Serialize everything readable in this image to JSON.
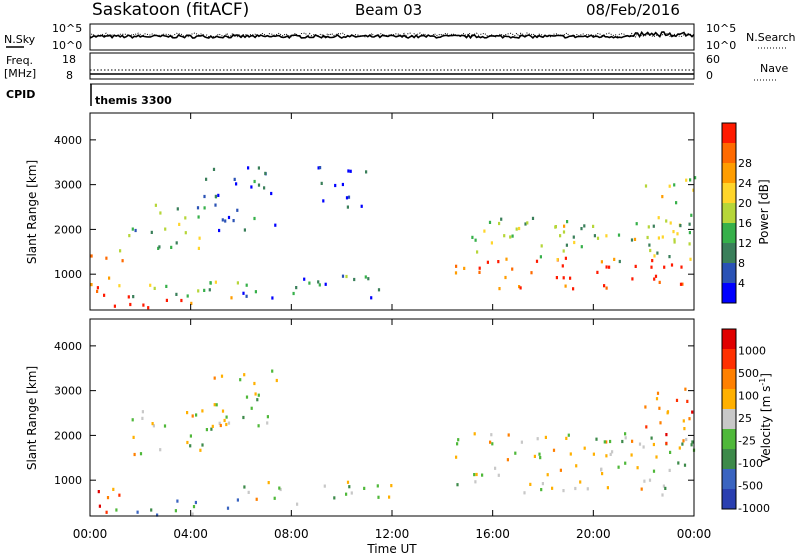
{
  "header": {
    "station": "Saskatoon (fitACF)",
    "beam": "Beam 03",
    "date": "08/Feb/2016"
  },
  "top_panels": {
    "nsky_label": "N.Sky",
    "nsky_ticks": [
      "10^5",
      "10^0"
    ],
    "nsearch_label": "N.Search",
    "nsearch_ticks": [
      "10^5",
      "10^0"
    ],
    "freq_label": "Freq.",
    "freq_unit": "[MHz]",
    "freq_ticks": [
      "18",
      "8"
    ],
    "nave_label": "Nave",
    "nave_ticks": [
      "60",
      "0"
    ],
    "cpid_label": "CPID",
    "cpid_value": "themis 3300"
  },
  "chart_data": [
    {
      "type": "heatmap",
      "name": "power",
      "ylabel": "Slant Range [km]",
      "y_ticks": [
        "1000",
        "2000",
        "3000",
        "4000"
      ],
      "ylim": [
        200,
        4600
      ],
      "colorbar_label": "Power [dB]",
      "colorbar_ticks": [
        "4",
        "8",
        "12",
        "16",
        "20",
        "24",
        "28"
      ],
      "colors": [
        "#0000ff",
        "#2a52b5",
        "#3a7f5a",
        "#36b04a",
        "#b6d639",
        "#ffd52a",
        "#ff9d00",
        "#ff6a00",
        "#ff1a00"
      ],
      "regions": [
        {
          "t": [
            0.0,
            1.5
          ],
          "r": [
            700,
            1600
          ],
          "level": 0.7
        },
        {
          "t": [
            0.0,
            1.5
          ],
          "r": [
            250,
            700
          ],
          "level": 0.95
        },
        {
          "t": [
            1.5,
            6.0
          ],
          "r": [
            250,
            450
          ],
          "level": 0.95
        },
        {
          "t": [
            1.0,
            6.5
          ],
          "r": [
            500,
            900
          ],
          "level": 0.5
        },
        {
          "t": [
            1.5,
            4.5
          ],
          "r": [
            1600,
            2600
          ],
          "level": 0.4
        },
        {
          "t": [
            4.5,
            7.5
          ],
          "r": [
            2000,
            3500
          ],
          "level": 0.2
        },
        {
          "t": [
            6.0,
            12.0
          ],
          "r": [
            500,
            1000
          ],
          "level": 0.3
        },
        {
          "t": [
            9.0,
            11.0
          ],
          "r": [
            2500,
            3500
          ],
          "level": 0.1
        },
        {
          "t": [
            14.5,
            24.0
          ],
          "r": [
            700,
            1400
          ],
          "level": 0.9
        },
        {
          "t": [
            15.0,
            24.0
          ],
          "r": [
            1300,
            2300
          ],
          "level": 0.45
        },
        {
          "t": [
            22.0,
            24.0
          ],
          "r": [
            1800,
            3200
          ],
          "level": 0.5
        }
      ]
    },
    {
      "type": "heatmap",
      "name": "velocity",
      "ylabel": "Slant Range [km]",
      "y_ticks": [
        "1000",
        "2000",
        "3000",
        "4000"
      ],
      "ylim": [
        200,
        4600
      ],
      "x_ticks": [
        "00:00",
        "04:00",
        "08:00",
        "12:00",
        "16:00",
        "20:00",
        "00:00"
      ],
      "xlabel": "Time UT",
      "colorbar_label": "Velocity [m s^-1]",
      "colorbar_ticks": [
        "1000",
        "500",
        "100",
        "25",
        "-25",
        "-100",
        "-500",
        "-1000"
      ],
      "colors": [
        "#2a3fb0",
        "#3a64c0",
        "#3d8a4a",
        "#4fb83a",
        "#c8c8c8",
        "#ffb000",
        "#ff8000",
        "#ff3000",
        "#e00000"
      ],
      "regions": [
        {
          "t": [
            0.0,
            1.5
          ],
          "r": [
            300,
            900
          ],
          "level": 0.78
        },
        {
          "t": [
            1.0,
            6.0
          ],
          "r": [
            250,
            600
          ],
          "level": 0.3
        },
        {
          "t": [
            1.5,
            4.5
          ],
          "r": [
            1600,
            2600
          ],
          "level": 0.5
        },
        {
          "t": [
            4.5,
            7.5
          ],
          "r": [
            2000,
            3500
          ],
          "level": 0.5
        },
        {
          "t": [
            6.0,
            12.0
          ],
          "r": [
            500,
            1000
          ],
          "level": 0.5
        },
        {
          "t": [
            14.5,
            24.0
          ],
          "r": [
            700,
            2100
          ],
          "level": 0.5
        },
        {
          "t": [
            22.0,
            24.0
          ],
          "r": [
            1800,
            3200
          ],
          "level": 0.7
        }
      ]
    }
  ]
}
